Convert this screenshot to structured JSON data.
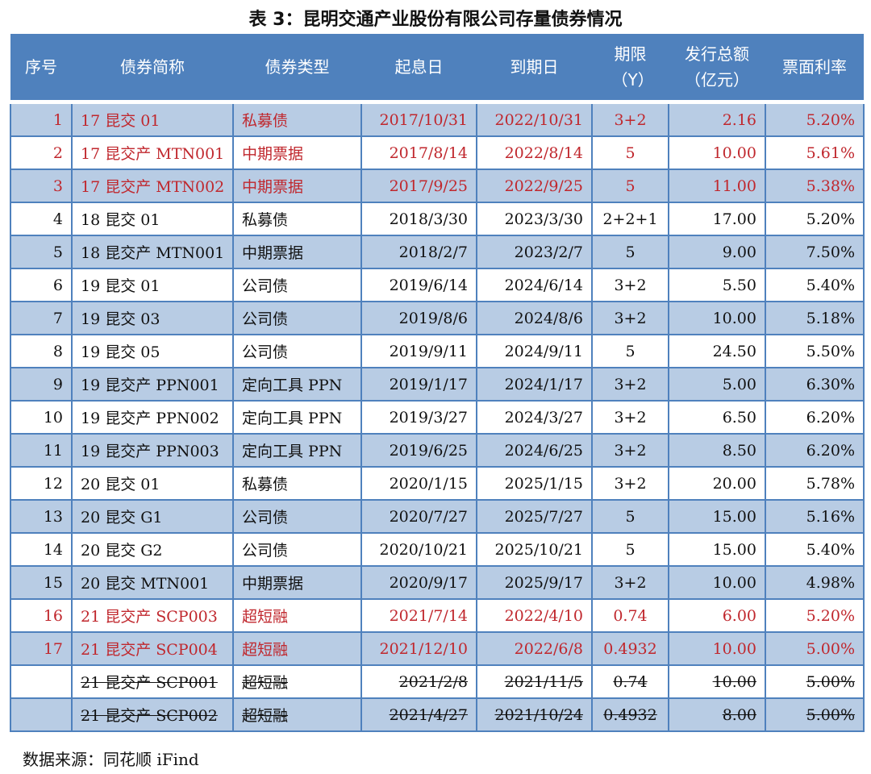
{
  "title": "表 3：昆明交通产业股份有限公司存量债券情况",
  "headers": [
    "序号",
    "债券简称",
    "债券类型",
    "起息日",
    "到期日",
    "期限（Y）",
    "发行总额（亿元）",
    "票面利率"
  ],
  "header_lines": [
    [
      "序号"
    ],
    [
      "债券简称"
    ],
    [
      "债券类型"
    ],
    [
      "起息日"
    ],
    [
      "到期日"
    ],
    [
      "期限",
      "（Y）"
    ],
    [
      "发行总额",
      "（亿元）"
    ],
    [
      "票面利率"
    ]
  ],
  "colors": {
    "header": "#4f81bd",
    "alt_row": "#b8cce4",
    "highlight_text": "#c0272d"
  },
  "rows": [
    {
      "cells": [
        "1",
        "17 昆交 01",
        "私募债",
        "2017/10/31",
        "2022/10/31",
        "3+2",
        "2.16",
        "5.20%"
      ],
      "red": true
    },
    {
      "cells": [
        "2",
        "17 昆交产 MTN001",
        "中期票据",
        "2017/8/14",
        "2022/8/14",
        "5",
        "10.00",
        "5.61%"
      ],
      "red": true
    },
    {
      "cells": [
        "3",
        "17 昆交产 MTN002",
        "中期票据",
        "2017/9/25",
        "2022/9/25",
        "5",
        "11.00",
        "5.38%"
      ],
      "red": true
    },
    {
      "cells": [
        "4",
        "18 昆交 01",
        "私募债",
        "2018/3/30",
        "2023/3/30",
        "2+2+1",
        "17.00",
        "5.20%"
      ]
    },
    {
      "cells": [
        "5",
        "18 昆交产 MTN001",
        "中期票据",
        "2018/2/7",
        "2023/2/7",
        "5",
        "9.00",
        "7.50%"
      ]
    },
    {
      "cells": [
        "6",
        "19 昆交 01",
        "公司债",
        "2019/6/14",
        "2024/6/14",
        "3+2",
        "5.50",
        "5.40%"
      ]
    },
    {
      "cells": [
        "7",
        "19 昆交 03",
        "公司债",
        "2019/8/6",
        "2024/8/6",
        "3+2",
        "10.00",
        "5.18%"
      ]
    },
    {
      "cells": [
        "8",
        "19 昆交 05",
        "公司债",
        "2019/9/11",
        "2024/9/11",
        "5",
        "24.50",
        "5.50%"
      ]
    },
    {
      "cells": [
        "9",
        "19 昆交产 PPN001",
        "定向工具 PPN",
        "2019/1/17",
        "2024/1/17",
        "3+2",
        "5.00",
        "6.30%"
      ]
    },
    {
      "cells": [
        "10",
        "19 昆交产 PPN002",
        "定向工具 PPN",
        "2019/3/27",
        "2024/3/27",
        "3+2",
        "6.50",
        "6.20%"
      ]
    },
    {
      "cells": [
        "11",
        "19 昆交产 PPN003",
        "定向工具 PPN",
        "2019/6/25",
        "2024/6/25",
        "3+2",
        "8.50",
        "6.20%"
      ]
    },
    {
      "cells": [
        "12",
        "20 昆交 01",
        "私募债",
        "2020/1/15",
        "2025/1/15",
        "3+2",
        "20.00",
        "5.78%"
      ]
    },
    {
      "cells": [
        "13",
        "20 昆交 G1",
        "公司债",
        "2020/7/27",
        "2025/7/27",
        "5",
        "15.00",
        "5.16%"
      ]
    },
    {
      "cells": [
        "14",
        "20 昆交 G2",
        "公司债",
        "2020/10/21",
        "2025/10/21",
        "5",
        "15.00",
        "5.40%"
      ]
    },
    {
      "cells": [
        "15",
        "20 昆交 MTN001",
        "中期票据",
        "2020/9/17",
        "2025/9/17",
        "3+2",
        "10.00",
        "4.98%"
      ]
    },
    {
      "cells": [
        "16",
        "21 昆交产 SCP003",
        "超短融",
        "2021/7/14",
        "2022/4/10",
        "0.74",
        "6.00",
        "5.20%"
      ],
      "red": true
    },
    {
      "cells": [
        "17",
        "21 昆交产 SCP004",
        "超短融",
        "2021/12/10",
        "2022/6/8",
        "0.4932",
        "10.00",
        "5.00%"
      ],
      "red": true
    },
    {
      "cells": [
        "",
        "21 昆交产 SCP001",
        "超短融",
        "2021/2/8",
        "2021/11/5",
        "0.74",
        "10.00",
        "5.00%"
      ],
      "strike": true
    },
    {
      "cells": [
        "",
        "21 昆交产 SCP002",
        "超短融",
        "2021/4/27",
        "2021/10/24",
        "0.4932",
        "8.00",
        "5.00%"
      ],
      "strike": true
    }
  ],
  "source": "数据来源：同花顺 iFind"
}
